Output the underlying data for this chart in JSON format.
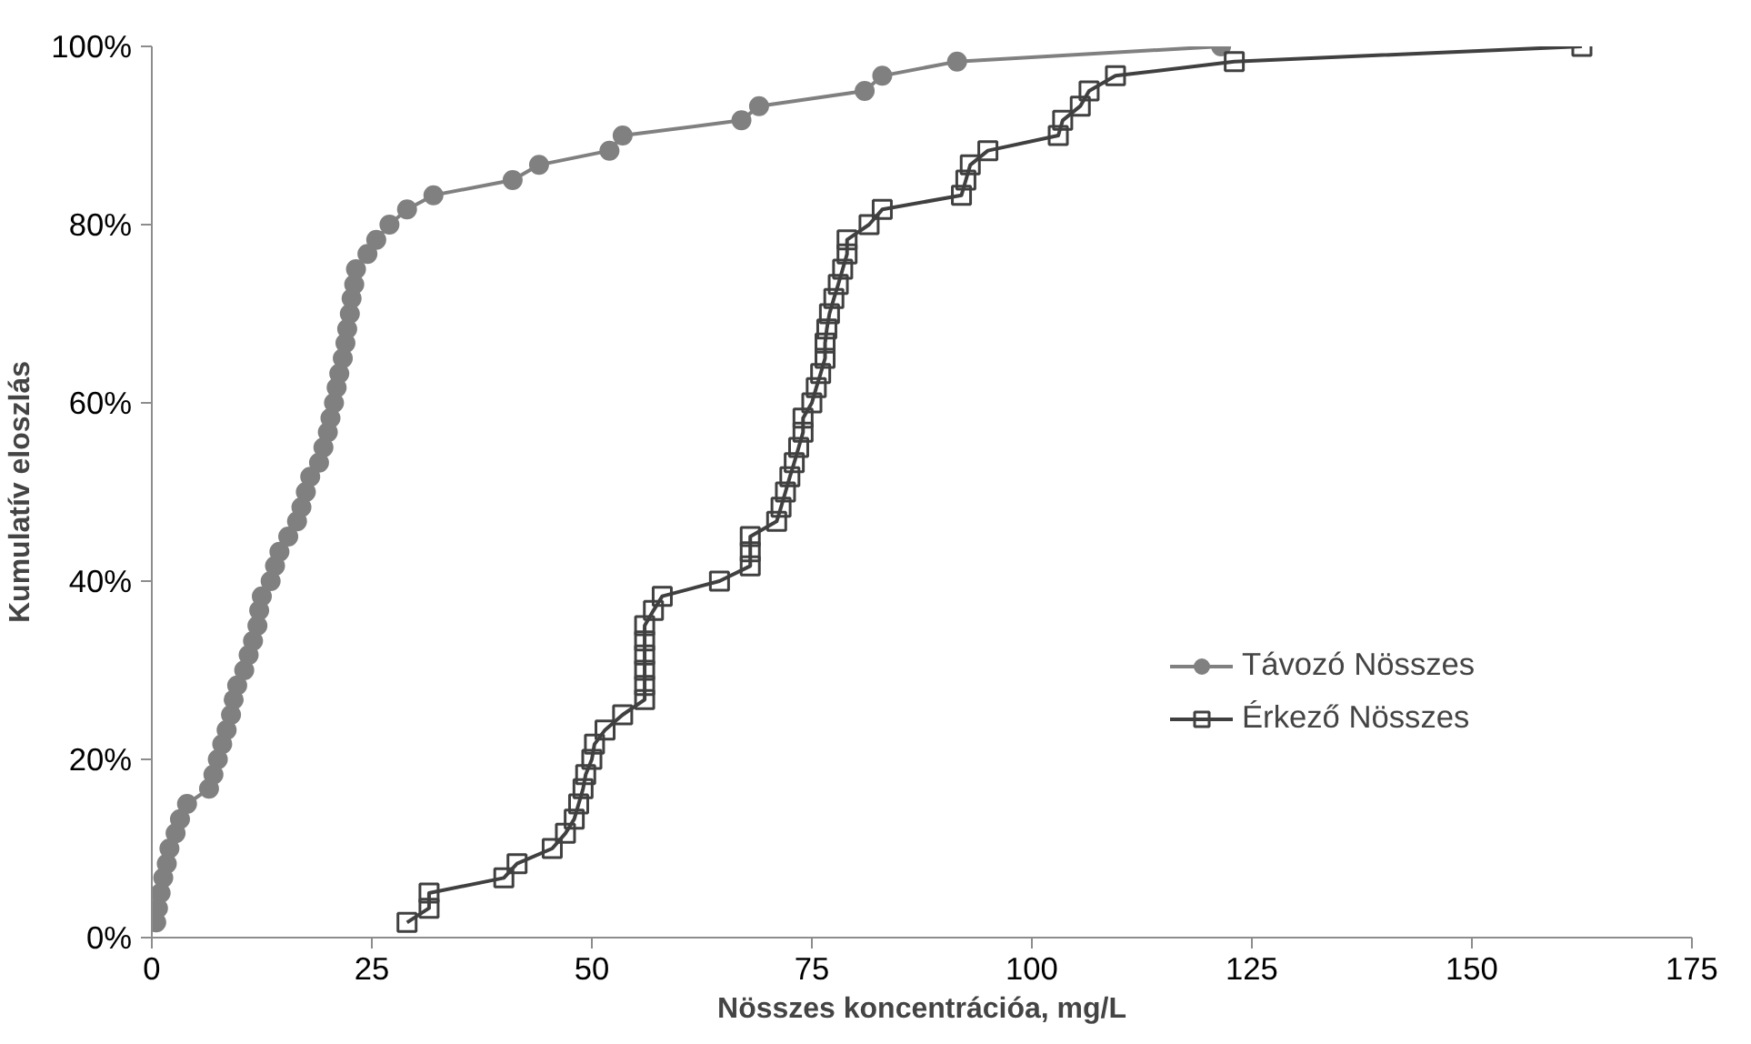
{
  "chart_data": {
    "type": "line",
    "xlabel": "Nösszes koncentrációa, mg/L",
    "ylabel": "Kumulatív eloszlás",
    "xlim": [
      0,
      175
    ],
    "xticks": [
      0,
      25,
      50,
      75,
      100,
      125,
      150,
      175
    ],
    "ylim": [
      0,
      100
    ],
    "yticks": [
      {
        "value": 0,
        "label": "0%"
      },
      {
        "value": 20,
        "label": "20%"
      },
      {
        "value": 40,
        "label": "40%"
      },
      {
        "value": 60,
        "label": "60%"
      },
      {
        "value": 80,
        "label": "80%"
      },
      {
        "value": 100,
        "label": "100%"
      }
    ],
    "grid": false,
    "legend": "right",
    "line_style": "solid",
    "series": [
      {
        "name": "Távozó Nösszes",
        "color": "#808080",
        "marker": "circle",
        "x": [
          0.5,
          0.7,
          1,
          1.3,
          1.7,
          2,
          2.7,
          3.2,
          4,
          6.5,
          7,
          7.5,
          8,
          8.5,
          9,
          9.3,
          9.7,
          10.5,
          11,
          11.5,
          12,
          12.2,
          12.5,
          13.5,
          14,
          14.5,
          15.5,
          16.5,
          17,
          17.5,
          18,
          19,
          19.5,
          20,
          20.3,
          20.7,
          21,
          21.3,
          21.7,
          22,
          22.2,
          22.5,
          22.7,
          23,
          23.2,
          24.5,
          25.5,
          27,
          29,
          32,
          41,
          44,
          52,
          53.5,
          67,
          69,
          81,
          83,
          91.5,
          121.5
        ],
        "values": [
          1.7,
          3.3,
          5,
          6.7,
          8.3,
          10,
          11.7,
          13.3,
          15,
          16.7,
          18.3,
          20,
          21.7,
          23.3,
          25,
          26.7,
          28.3,
          30,
          31.7,
          33.3,
          35,
          36.7,
          38.3,
          40,
          41.7,
          43.3,
          45,
          46.7,
          48.3,
          50,
          51.7,
          53.3,
          55,
          56.7,
          58.3,
          60,
          61.7,
          63.3,
          65,
          66.7,
          68.3,
          70,
          71.7,
          73.3,
          75,
          76.7,
          78.3,
          80,
          81.7,
          83.3,
          85,
          86.7,
          88.3,
          90,
          91.7,
          93.3,
          95,
          96.7,
          98.3,
          100
        ]
      },
      {
        "name": "Érkező Nösszes",
        "color": "#404040",
        "marker": "square",
        "x": [
          29,
          31.5,
          31.5,
          40,
          41.5,
          45.5,
          47,
          48,
          48.5,
          49,
          49.3,
          50,
          50.3,
          51.5,
          53.5,
          56,
          56,
          56,
          56,
          56,
          56,
          57,
          58,
          64.5,
          68,
          68,
          68,
          71,
          71.5,
          72,
          72.5,
          73,
          73.5,
          74,
          74,
          75,
          75.5,
          76,
          76.5,
          76.5,
          76.7,
          77,
          77.5,
          78,
          78.5,
          79,
          79,
          81.5,
          83,
          92,
          92.5,
          93,
          95,
          103,
          103.5,
          105.5,
          106.5,
          109.5,
          123,
          162.5
        ],
        "values": [
          1.7,
          3.3,
          5,
          6.7,
          8.3,
          10,
          11.7,
          13.3,
          15,
          16.7,
          18.3,
          20,
          21.7,
          23.3,
          25,
          26.7,
          28.3,
          30,
          31.7,
          33.3,
          35,
          36.7,
          38.3,
          40,
          41.7,
          43.3,
          45,
          46.7,
          48.3,
          50,
          51.7,
          53.3,
          55,
          56.7,
          58.3,
          60,
          61.7,
          63.3,
          65,
          66.7,
          68.3,
          70,
          71.7,
          73.3,
          75,
          76.7,
          78.3,
          80,
          81.7,
          83.3,
          85,
          86.7,
          88.3,
          90,
          91.7,
          93.3,
          95,
          96.7,
          98.3,
          100
        ]
      }
    ]
  }
}
